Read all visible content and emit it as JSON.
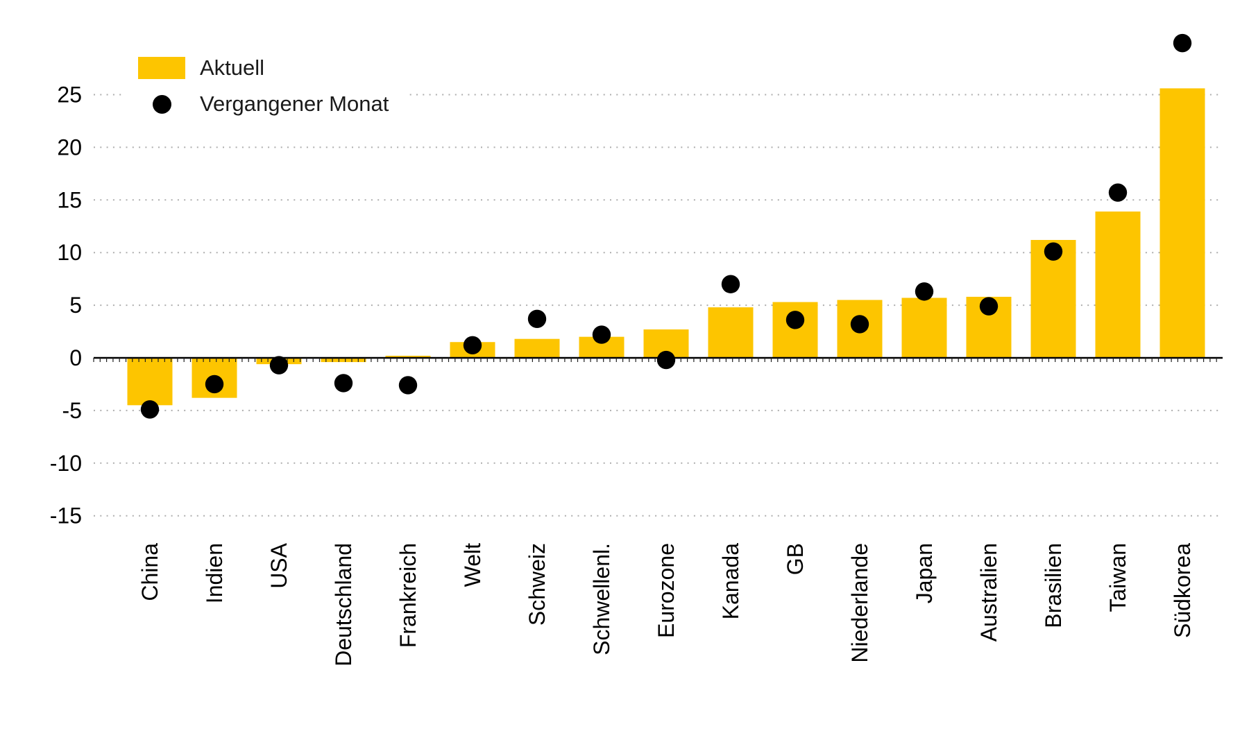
{
  "legend": {
    "items": [
      {
        "label": "Aktuell",
        "marker": "bar-swatch",
        "color": "#FDC500"
      },
      {
        "label": "Vergangener Monat",
        "marker": "dot",
        "color": "#000000"
      }
    ]
  },
  "chart_data": {
    "type": "bar",
    "title": "",
    "xlabel": "",
    "ylabel": "",
    "categories": [
      "China",
      "Indien",
      "USA",
      "Deutschland",
      "Frankreich",
      "Welt",
      "Schweiz",
      "Schwellenl.",
      "Eurozone",
      "Kanada",
      "GB",
      "Niederlande",
      "Japan",
      "Australien",
      "Brasilien",
      "Taiwan",
      "Südkorea"
    ],
    "series": [
      {
        "name": "Aktuell",
        "type": "bar",
        "color": "#FDC500",
        "values": [
          -4.5,
          -3.8,
          -0.6,
          -0.4,
          0.2,
          1.5,
          1.8,
          2.0,
          2.7,
          4.8,
          5.3,
          5.5,
          5.7,
          5.8,
          11.2,
          13.9,
          25.6
        ]
      },
      {
        "name": "Vergangener Monat",
        "type": "scatter",
        "color": "#000000",
        "values": [
          -4.9,
          -2.5,
          -0.7,
          -2.4,
          -2.6,
          1.2,
          3.7,
          2.2,
          -0.2,
          7.0,
          3.6,
          3.2,
          6.3,
          4.9,
          10.1,
          15.7,
          29.9
        ]
      }
    ],
    "yticks": [
      -15,
      -10,
      -5,
      0,
      5,
      10,
      15,
      20,
      25
    ],
    "ytick_labels": [
      "-15",
      "-10",
      "-5",
      "0",
      "5",
      "10",
      "15",
      "20",
      "25"
    ],
    "ylim": [
      -17.5,
      31
    ],
    "grid": "horizontal-dotted",
    "legend_position": "top-left",
    "x_label_rotation": -90
  },
  "colors": {
    "bar": "#FDC500",
    "dot": "#000000",
    "axis": "#000000",
    "gridline": "#adadad",
    "background": "#FFFFFF",
    "text": "#000000"
  }
}
